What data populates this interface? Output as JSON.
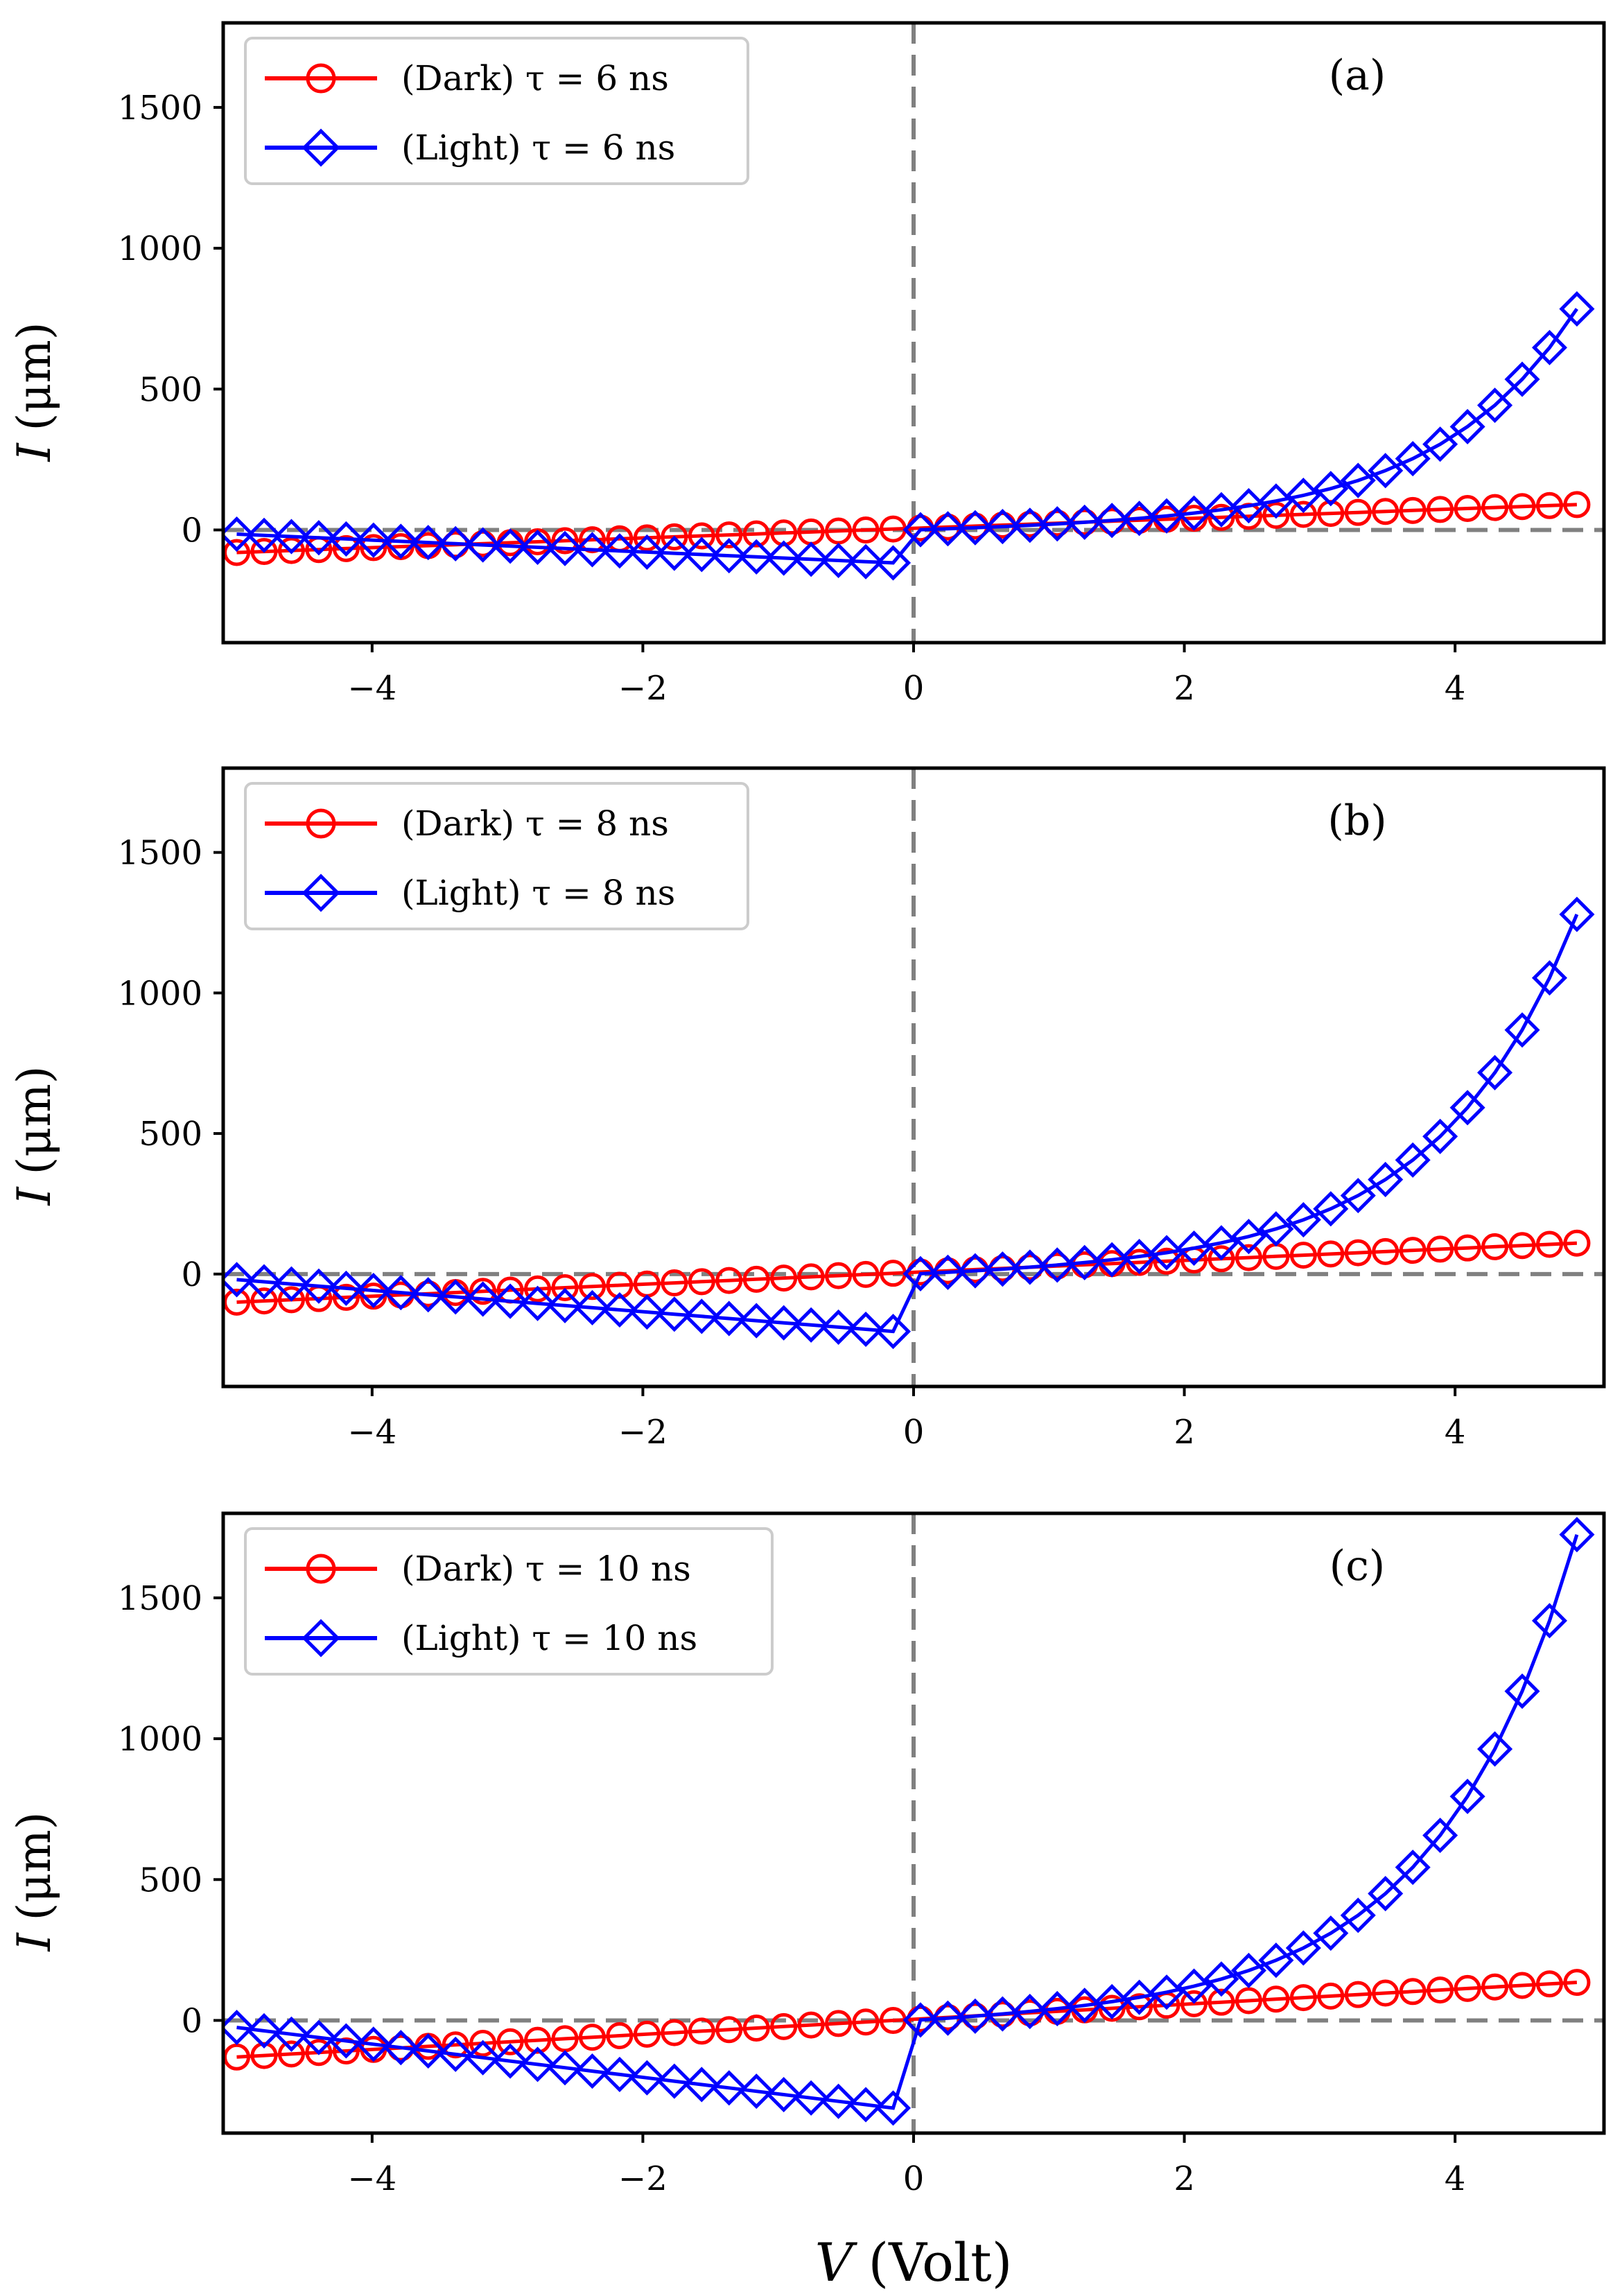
{
  "figure": {
    "xlabel_var": "V",
    "xlabel_unit": "(Volt)"
  },
  "colors": {
    "dark": "#ff0000",
    "light": "#0000ff",
    "reference": "#808080",
    "axes": "#000000",
    "legend_border": "#cccccc"
  },
  "chart_data": [
    {
      "type": "line",
      "panel_label": "(a)",
      "ylabel_var": "I",
      "ylabel_unit": "(μm)",
      "xlim": [
        -5.1,
        5.1
      ],
      "ylim": [
        -400,
        1800
      ],
      "xticks": [
        -4,
        -2,
        0,
        2,
        4
      ],
      "xtick_labels": [
        "−4",
        "−2",
        "0",
        "2",
        "4"
      ],
      "yticks": [
        0,
        500,
        1000,
        1500
      ],
      "ytick_labels": [
        "0",
        "500",
        "1000",
        "1500"
      ],
      "reference_lines": {
        "x": 0,
        "y": 0
      },
      "legend_position": "top-left",
      "series": [
        {
          "name": "dark",
          "label": "(Dark) τ = 6 ns",
          "marker": "circle",
          "model": {
            "kind": "linear",
            "v_start": -5.0,
            "v_end": 4.9,
            "y_start": -80,
            "y_end": 90
          }
        },
        {
          "name": "light",
          "label": "(Light) τ = 6 ns",
          "marker": "diamond",
          "model": {
            "kind": "diode",
            "v_start": -5.0,
            "v_end": 4.9,
            "a": -120,
            "b": 15,
            "c": 15,
            "y_end": 770
          }
        }
      ]
    },
    {
      "type": "line",
      "panel_label": "(b)",
      "ylabel_var": "I",
      "ylabel_unit": "(μm)",
      "xlim": [
        -5.1,
        5.1
      ],
      "ylim": [
        -400,
        1800
      ],
      "xticks": [
        -4,
        -2,
        0,
        2,
        4
      ],
      "xtick_labels": [
        "−4",
        "−2",
        "0",
        "2",
        "4"
      ],
      "yticks": [
        0,
        500,
        1000,
        1500
      ],
      "ytick_labels": [
        "0",
        "500",
        "1000",
        "1500"
      ],
      "reference_lines": {
        "x": 0,
        "y": 0
      },
      "legend_position": "top-left",
      "series": [
        {
          "name": "dark",
          "label": "(Dark) τ = 8 ns",
          "marker": "circle",
          "model": {
            "kind": "linear",
            "v_start": -5.0,
            "v_end": 4.9,
            "y_start": -100,
            "y_end": 110
          }
        },
        {
          "name": "light",
          "label": "(Light) τ = 8 ns",
          "marker": "diamond",
          "model": {
            "kind": "diode",
            "v_start": -5.0,
            "v_end": 4.9,
            "a": -210,
            "b": 20,
            "c": 20,
            "y_end": 1260
          }
        }
      ]
    },
    {
      "type": "line",
      "panel_label": "(c)",
      "ylabel_var": "I",
      "ylabel_unit": "(μm)",
      "xlim": [
        -5.1,
        5.1
      ],
      "ylim": [
        -400,
        1800
      ],
      "xticks": [
        -4,
        -2,
        0,
        2,
        4
      ],
      "xtick_labels": [
        "−4",
        "−2",
        "0",
        "2",
        "4"
      ],
      "yticks": [
        0,
        500,
        1000,
        1500
      ],
      "ytick_labels": [
        "0",
        "500",
        "1000",
        "1500"
      ],
      "reference_lines": {
        "x": 0,
        "y": 0
      },
      "legend_position": "top-left",
      "series": [
        {
          "name": "dark",
          "label": "(Dark) τ = 10 ns",
          "marker": "circle",
          "model": {
            "kind": "linear",
            "v_start": -5.0,
            "v_end": 4.9,
            "y_start": -130,
            "y_end": 135
          }
        },
        {
          "name": "light",
          "label": "(Light) τ = 10 ns",
          "marker": "diamond",
          "model": {
            "kind": "diode",
            "v_start": -5.0,
            "v_end": 4.9,
            "a": -320,
            "b": 25,
            "c": 25,
            "y_end": 1700
          }
        }
      ]
    }
  ]
}
